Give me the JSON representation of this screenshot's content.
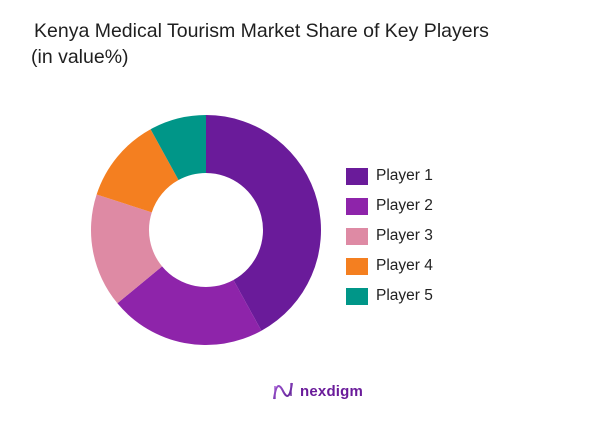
{
  "title": {
    "line1": "Kenya Medical Tourism Market Share of Key Players",
    "line2": "(in value%)"
  },
  "chart_data": {
    "type": "pie",
    "variant": "donut",
    "title": "Kenya Medical Tourism Market Share of Key Players (in value%)",
    "categories": [
      "Player 1",
      "Player 2",
      "Player 3",
      "Player 4",
      "Player 5"
    ],
    "values": [
      42,
      22,
      16,
      12,
      8
    ],
    "colors": [
      "#6a1b9a",
      "#8e24aa",
      "#de8aa4",
      "#f47f20",
      "#009688"
    ],
    "start_angle": "12 o'clock",
    "direction": "clockwise",
    "legend_position": "right",
    "data_labels": false
  },
  "legend": [
    {
      "label": "Player 1",
      "color": "#6a1b9a"
    },
    {
      "label": "Player 2",
      "color": "#8e24aa"
    },
    {
      "label": "Player 3",
      "color": "#de8aa4"
    },
    {
      "label": "Player 4",
      "color": "#f47f20"
    },
    {
      "label": "Player 5",
      "color": "#009688"
    }
  ],
  "brand": {
    "name": "nexdigm",
    "color": "#6a1b9a"
  }
}
